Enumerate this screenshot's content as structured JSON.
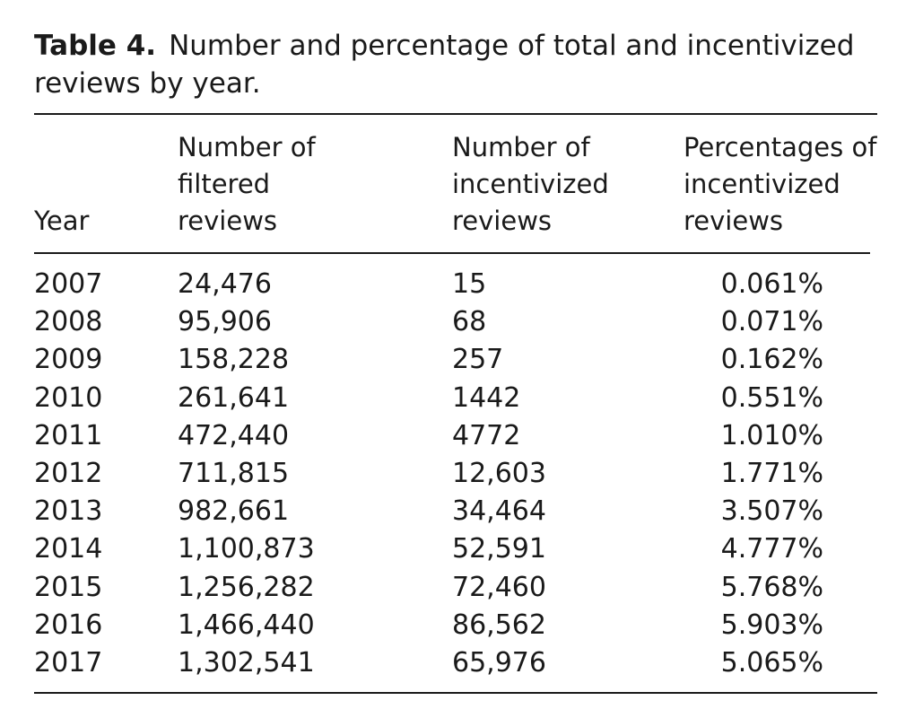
{
  "caption": {
    "label": "Table 4.",
    "text": "Number and percentage of total and incentivized reviews by year."
  },
  "headers": {
    "year": "Year",
    "filtered": [
      "Number of",
      "filtered",
      "reviews"
    ],
    "incentivized": [
      "Number of",
      "incentivized",
      "reviews"
    ],
    "percentage": [
      "Percentages of",
      "incentivized",
      "reviews"
    ]
  },
  "rows": [
    {
      "year": "2007",
      "filtered": "24,476",
      "incentivized": "15",
      "percentage": "0.061%"
    },
    {
      "year": "2008",
      "filtered": "95,906",
      "incentivized": "68",
      "percentage": "0.071%"
    },
    {
      "year": "2009",
      "filtered": "158,228",
      "incentivized": "257",
      "percentage": "0.162%"
    },
    {
      "year": "2010",
      "filtered": "261,641",
      "incentivized": "1442",
      "percentage": "0.551%"
    },
    {
      "year": "2011",
      "filtered": "472,440",
      "incentivized": "4772",
      "percentage": "1.010%"
    },
    {
      "year": "2012",
      "filtered": "711,815",
      "incentivized": "12,603",
      "percentage": "1.771%"
    },
    {
      "year": "2013",
      "filtered": "982,661",
      "incentivized": "34,464",
      "percentage": "3.507%"
    },
    {
      "year": "2014",
      "filtered": "1,100,873",
      "incentivized": "52,591",
      "percentage": "4.777%"
    },
    {
      "year": "2015",
      "filtered": "1,256,282",
      "incentivized": "72,460",
      "percentage": "5.768%"
    },
    {
      "year": "2016",
      "filtered": "1,466,440",
      "incentivized": "86,562",
      "percentage": "5.903%"
    },
    {
      "year": "2017",
      "filtered": "1,302,541",
      "incentivized": "65,976",
      "percentage": "5.065%"
    }
  ]
}
